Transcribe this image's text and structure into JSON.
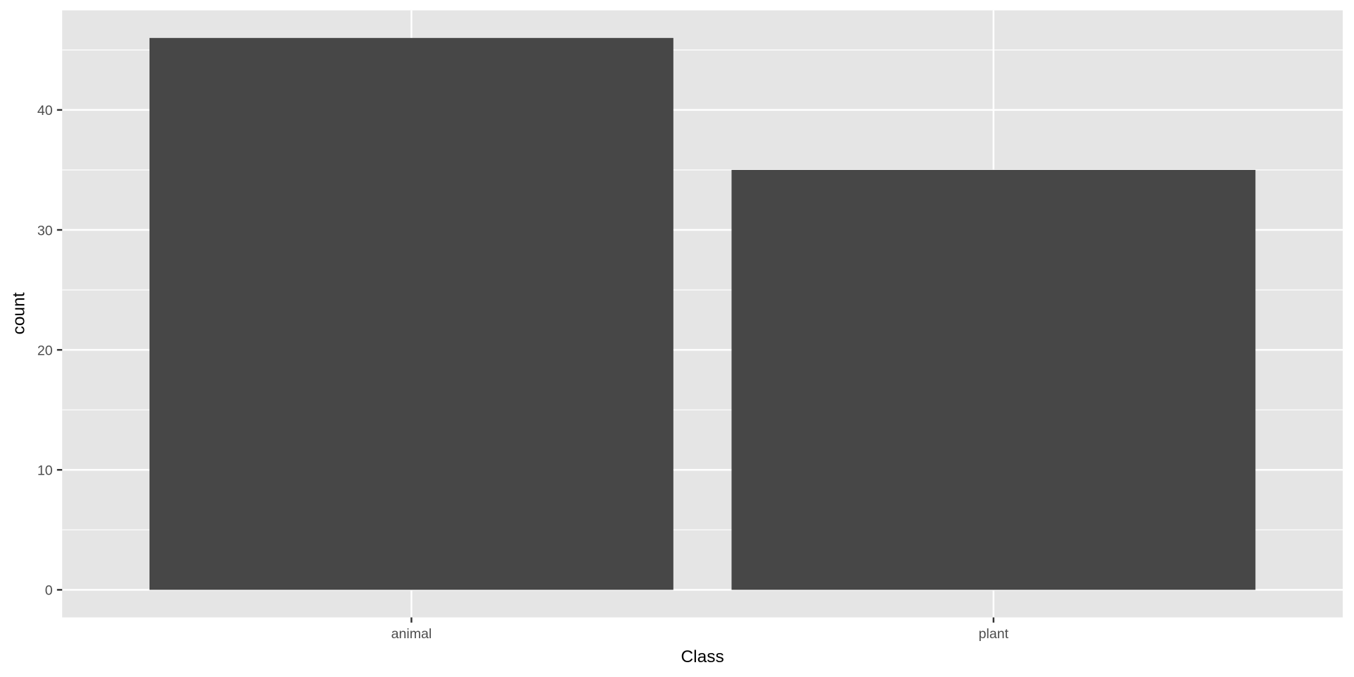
{
  "chart_data": {
    "type": "bar",
    "categories": [
      "animal",
      "plant"
    ],
    "values": [
      46,
      35
    ],
    "title": "",
    "xlabel": "Class",
    "ylabel": "count",
    "ylim": [
      -2.3,
      48.3
    ],
    "yticks": [
      0,
      10,
      20,
      30,
      40
    ],
    "grid": true,
    "colors": {
      "bar": "#474747",
      "panel": "#e5e5e5",
      "grid": "#ffffff",
      "tick_text": "#4d4d4d"
    }
  }
}
